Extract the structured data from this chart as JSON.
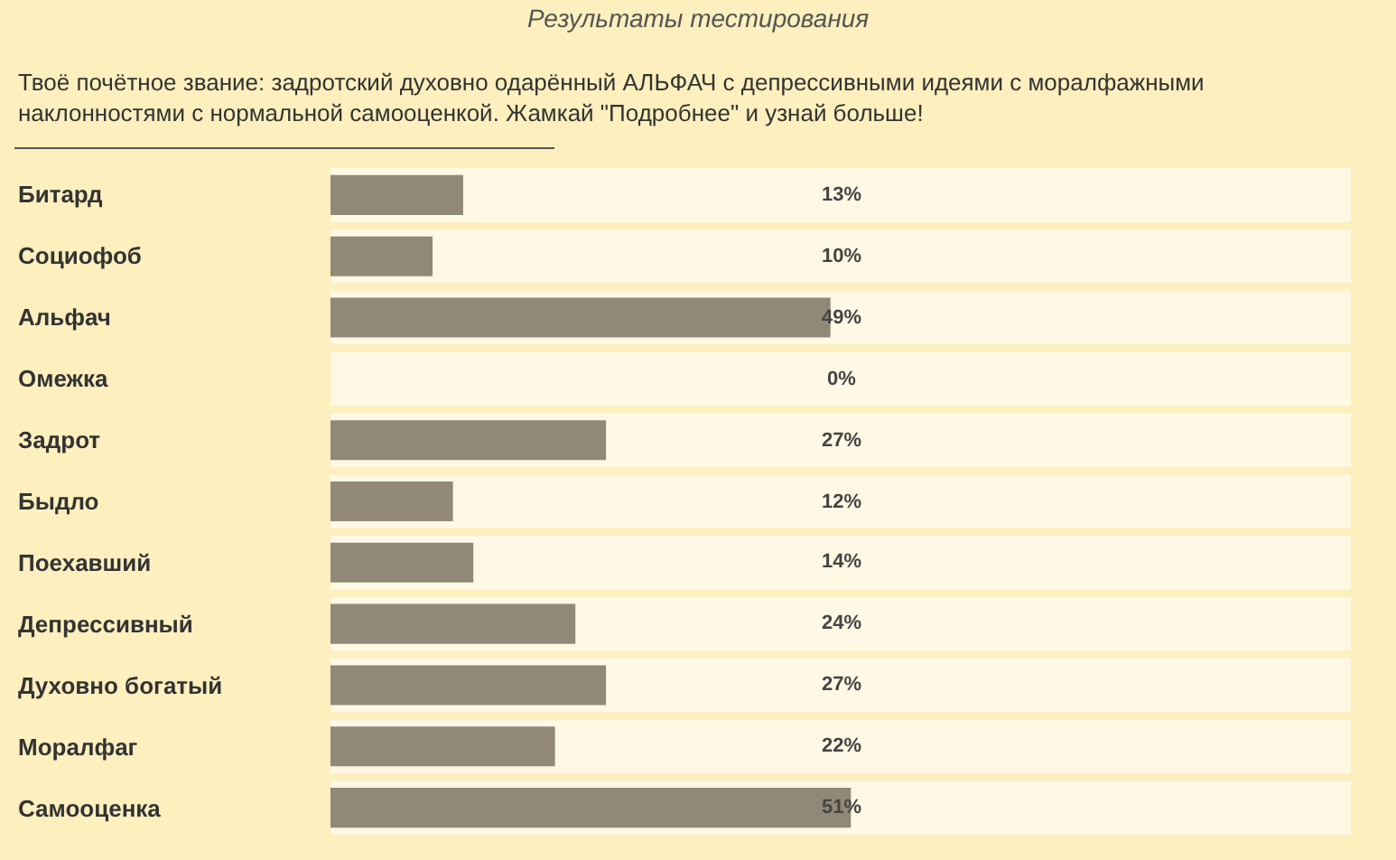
{
  "chart_data": {
    "type": "bar",
    "orientation": "horizontal",
    "title": "Результаты тестирования",
    "subtitle": "Твоё почётное звание: задротский духовно одарённый АЛЬФАЧ с депрессивными идеями с моралфажными наклонностями с нормальной самооценкой. Жамкай \"Подробнее\" и узнай больше!",
    "categories": [
      "Битард",
      "Социофоб",
      "Альфач",
      "Омежка",
      "Задрот",
      "Быдло",
      "Поехавший",
      "Депрессивный",
      "Духовно богатый",
      "Моралфаг",
      "Самооценка"
    ],
    "values": [
      13,
      10,
      49,
      0,
      27,
      12,
      14,
      24,
      27,
      22,
      51
    ],
    "value_labels": [
      "13%",
      "10%",
      "49%",
      "0%",
      "27%",
      "12%",
      "14%",
      "24%",
      "27%",
      "22%",
      "51%"
    ],
    "color": "#918877",
    "xlim": [
      0,
      100
    ],
    "legend": false
  }
}
